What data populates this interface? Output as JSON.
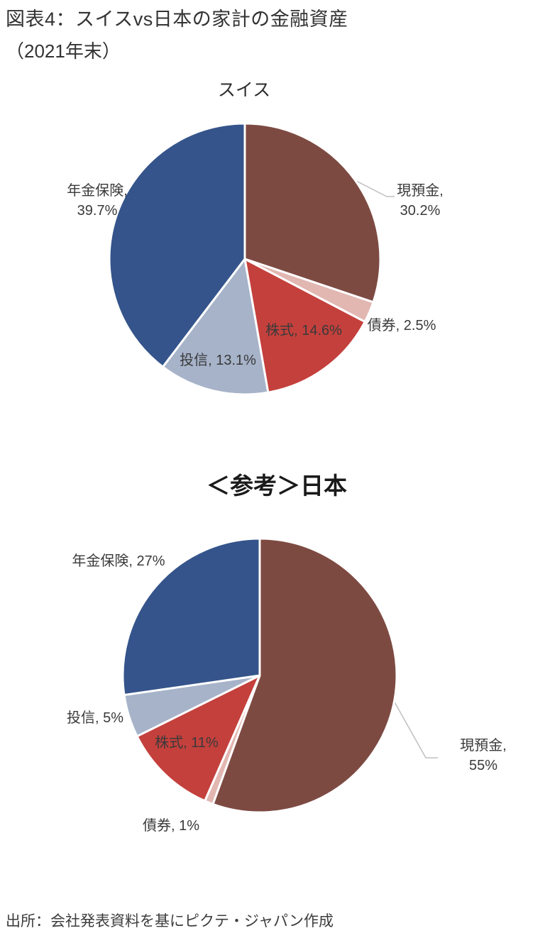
{
  "page": {
    "title": "図表4：スイスvs日本の家計の金融資産",
    "subtitle": "（2021年末）",
    "source": "出所：会社発表資料を基にピクテ・ジャパン作成"
  },
  "colors": {
    "cash": "#7d4a42",
    "bonds": "#e2b7b1",
    "stocks": "#c4403c",
    "funds": "#a6b3c9",
    "pension": "#35548b",
    "slice_border": "#ffffff",
    "label_text": "#3a3a3a",
    "leader_line": "#bfbfbf"
  },
  "chart_data": [
    {
      "type": "pie",
      "title": "スイス",
      "unit": "%",
      "start_angle_deg": 0,
      "direction": "clockwise",
      "legend": "none (direct data labels)",
      "slices": [
        {
          "name": "現預金",
          "value": 30.2,
          "label": "現預金,\n30.2%",
          "color_key": "cash"
        },
        {
          "name": "債券",
          "value": 2.5,
          "label": "債券, 2.5%",
          "color_key": "bonds"
        },
        {
          "name": "株式",
          "value": 14.6,
          "label": "株式, 14.6%",
          "color_key": "stocks"
        },
        {
          "name": "投信",
          "value": 13.1,
          "label": "投信, 13.1%",
          "color_key": "funds"
        },
        {
          "name": "年金保険",
          "value": 39.7,
          "label": "年金保険,\n39.7%",
          "color_key": "pension"
        }
      ]
    },
    {
      "type": "pie",
      "title": "＜参考＞日本",
      "unit": "%",
      "start_angle_deg": 0,
      "direction": "clockwise",
      "legend": "none (direct data labels)",
      "slices": [
        {
          "name": "現預金",
          "value": 55,
          "label": "現預金, 55%",
          "color_key": "cash"
        },
        {
          "name": "債券",
          "value": 1,
          "label": "債券, 1%",
          "color_key": "bonds"
        },
        {
          "name": "株式",
          "value": 11,
          "label": "株式, 11%",
          "color_key": "stocks"
        },
        {
          "name": "投信",
          "value": 5,
          "label": "投信, 5%",
          "color_key": "funds"
        },
        {
          "name": "年金保険",
          "value": 27,
          "label": "年金保険, 27%",
          "color_key": "pension"
        }
      ]
    }
  ]
}
